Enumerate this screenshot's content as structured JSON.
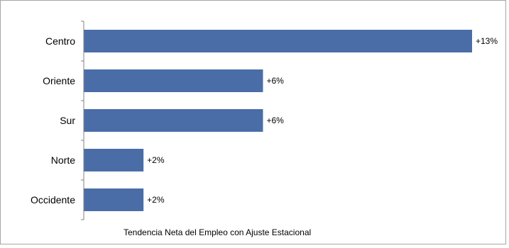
{
  "chart_data": {
    "type": "bar",
    "orientation": "horizontal",
    "categories": [
      "Centro",
      "Oriente",
      "Sur",
      "Norte",
      "Occidente"
    ],
    "values": [
      13,
      6,
      6,
      2,
      2
    ],
    "data_labels": [
      "+13%",
      "+6%",
      "+6%",
      "+2%",
      "+2%"
    ],
    "xlabel": "Tendencia Neta del Empleo con Ajuste Estacional",
    "ylabel": "",
    "xlim": [
      0,
      13
    ],
    "grid": false,
    "legend": "none",
    "bar_color": "#4a6da8"
  }
}
